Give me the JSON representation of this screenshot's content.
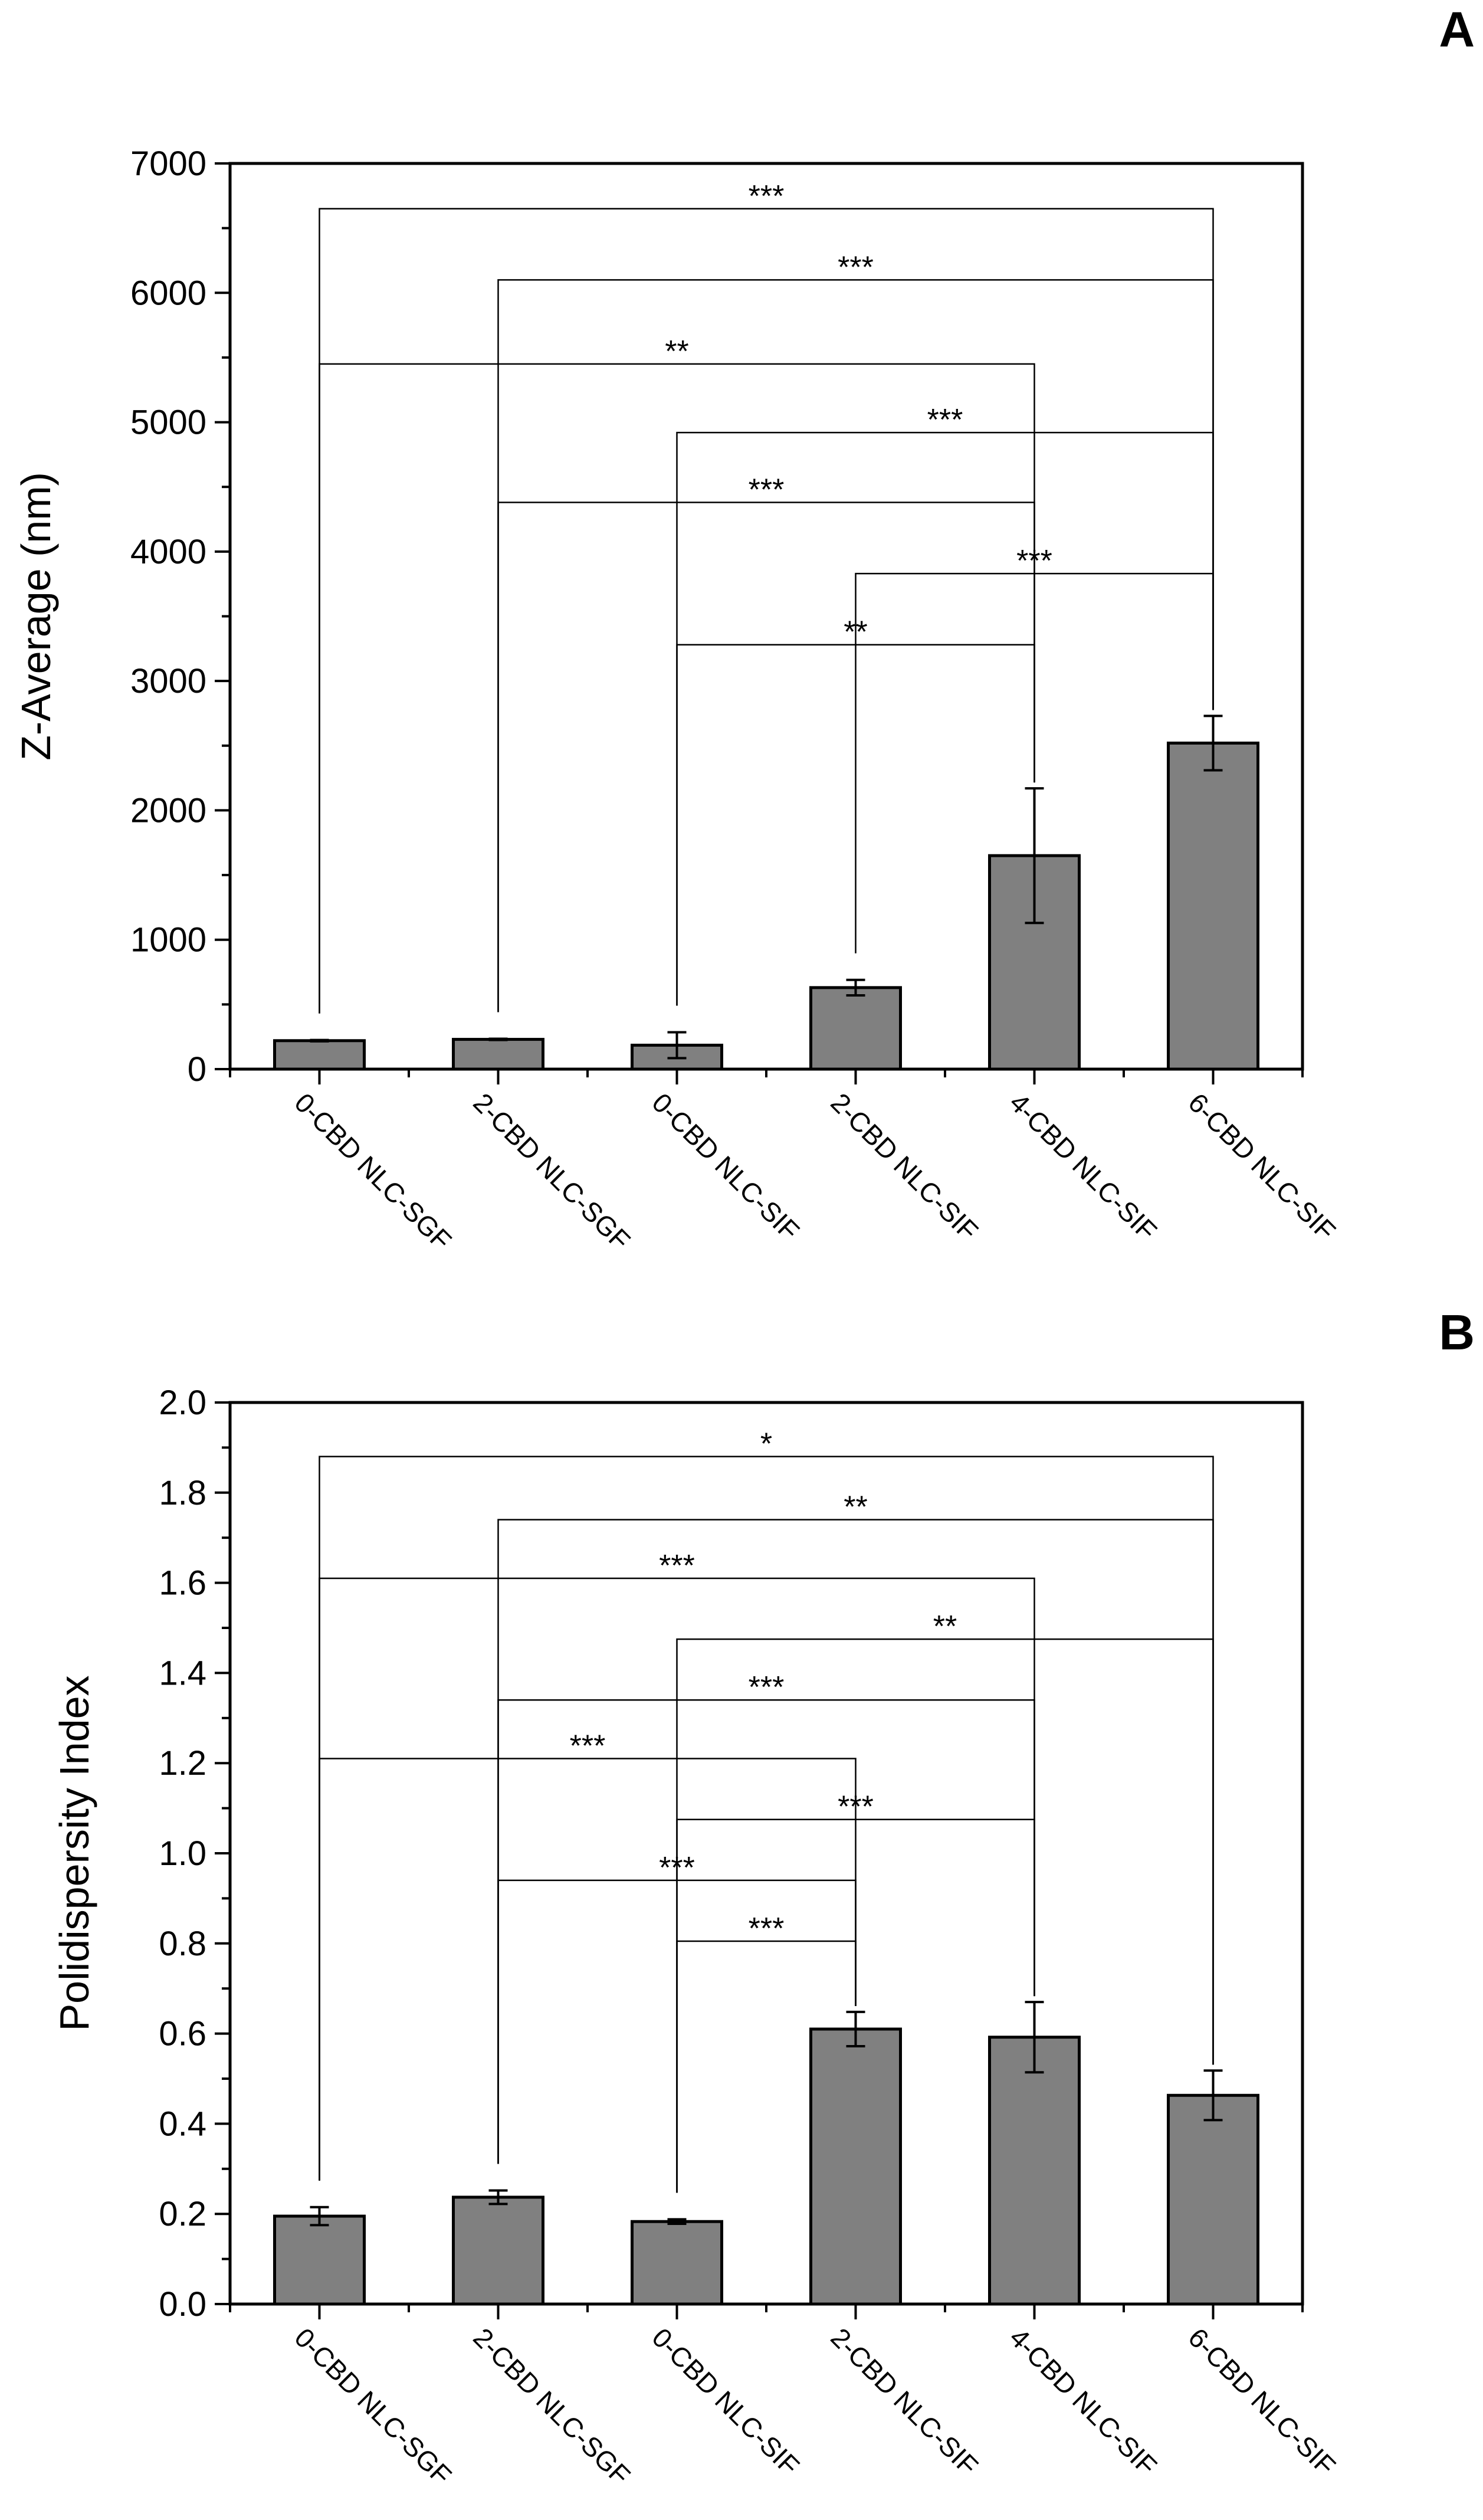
{
  "figure": {
    "panel_labels": [
      "A",
      "B"
    ]
  },
  "colors": {
    "bar_fill": "#808080",
    "bar_stroke": "#000000",
    "axis": "#000000",
    "bracket": "#000000"
  },
  "chart_data": [
    {
      "type": "bar",
      "panel": "A",
      "title": "",
      "xlabel": "",
      "ylabel": "Z-Average (nm)",
      "ylim": [
        0,
        7000
      ],
      "yticks": [
        0,
        1000,
        2000,
        3000,
        4000,
        5000,
        6000,
        7000
      ],
      "ytick_labels": [
        "0",
        "1000",
        "2000",
        "3000",
        "4000",
        "5000",
        "6000",
        "7000"
      ],
      "minor_step": 500,
      "grid": false,
      "categories": [
        "0-CBD NLC-SGF",
        "2-CBD NLC-SGF",
        "0-CBD NLC-SIF",
        "2-CBD NLC-SIF",
        "4-CBD NLC-SIF",
        "6-CBD NLC-SIF"
      ],
      "values": [
        220,
        230,
        185,
        630,
        1650,
        2520
      ],
      "errors": [
        5,
        5,
        100,
        60,
        520,
        210
      ],
      "significance": [
        {
          "from": 0,
          "to": 5,
          "y": 6650,
          "label": "***"
        },
        {
          "from": 1,
          "to": 5,
          "y": 6100,
          "label": "***"
        },
        {
          "from": 0,
          "to": 4,
          "y": 5450,
          "label": "**"
        },
        {
          "from": 2,
          "to": 5,
          "y": 4920,
          "label": "***"
        },
        {
          "from": 1,
          "to": 4,
          "y": 4380,
          "label": "***"
        },
        {
          "from": 3,
          "to": 5,
          "y": 3830,
          "label": "***"
        },
        {
          "from": 2,
          "to": 4,
          "y": 3280,
          "label": "**"
        }
      ]
    },
    {
      "type": "bar",
      "panel": "B",
      "title": "",
      "xlabel": "",
      "ylabel": "Polidispersity Index",
      "ylim": [
        0,
        2.0
      ],
      "yticks": [
        0.0,
        0.2,
        0.4,
        0.6,
        0.8,
        1.0,
        1.2,
        1.4,
        1.6,
        1.8,
        2.0
      ],
      "ytick_labels": [
        "0.0",
        "0.2",
        "0.4",
        "0.6",
        "0.8",
        "1.0",
        "1.2",
        "1.4",
        "1.6",
        "1.8",
        "2.0"
      ],
      "minor_step": 0.1,
      "grid": false,
      "categories": [
        "0-CBD NLC-SGF",
        "2-CBD NLC-SGF",
        "0-CBD NLC-SIF",
        "2-CBD NLC-SIF",
        "4-CBD NLC-SIF",
        "6-CBD NLC-SIF"
      ],
      "values": [
        0.195,
        0.237,
        0.183,
        0.61,
        0.592,
        0.463
      ],
      "errors": [
        0.02,
        0.015,
        0.005,
        0.038,
        0.078,
        0.055
      ],
      "significance": [
        {
          "from": 0,
          "to": 5,
          "y": 1.88,
          "label": "*"
        },
        {
          "from": 1,
          "to": 5,
          "y": 1.74,
          "label": "**"
        },
        {
          "from": 0,
          "to": 4,
          "y": 1.61,
          "label": "***"
        },
        {
          "from": 2,
          "to": 5,
          "y": 1.475,
          "label": "**"
        },
        {
          "from": 1,
          "to": 4,
          "y": 1.34,
          "label": "***"
        },
        {
          "from": 0,
          "to": 3,
          "y": 1.21,
          "label": "***"
        },
        {
          "from": 2,
          "to": 4,
          "y": 1.075,
          "label": "***"
        },
        {
          "from": 1,
          "to": 3,
          "y": 0.94,
          "label": "***"
        },
        {
          "from": 2,
          "to": 3,
          "y": 0.805,
          "label": "***"
        }
      ]
    }
  ]
}
